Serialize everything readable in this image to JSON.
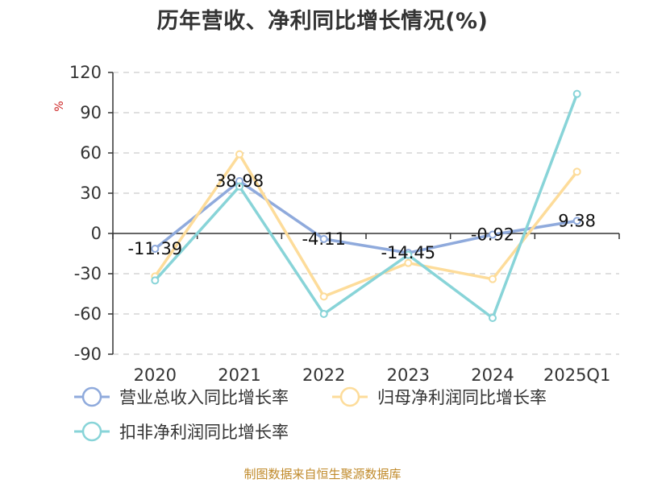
{
  "title": "历年营收、净利同比增长情况(%)",
  "source": "制图数据来自恒生聚源数据库",
  "chart_data": {
    "type": "line",
    "title": "历年营收、净利同比增长情况(%)",
    "ylabel": "%",
    "categories": [
      "2020",
      "2021",
      "2022",
      "2023",
      "2024",
      "2025Q1"
    ],
    "ylim": [
      -90,
      120
    ],
    "yticks": [
      120,
      90,
      60,
      30,
      0,
      -30,
      -60,
      -90
    ],
    "grid": true,
    "legend_position": "bottom",
    "series": [
      {
        "name": "营业总收入同比增长率",
        "color": "#8faadc",
        "values": [
          -11.39,
          38.98,
          -4.11,
          -14.45,
          -0.92,
          9.38
        ],
        "show_labels": true
      },
      {
        "name": "归母净利润同比增长率",
        "color": "#fddc9a",
        "values": [
          -32,
          59,
          -47,
          -22,
          -34,
          46
        ],
        "show_labels": false
      },
      {
        "name": "扣非净利润同比增长率",
        "color": "#88d4d8",
        "values": [
          -35,
          35,
          -60,
          -16,
          -63,
          104
        ],
        "show_labels": false
      }
    ]
  }
}
